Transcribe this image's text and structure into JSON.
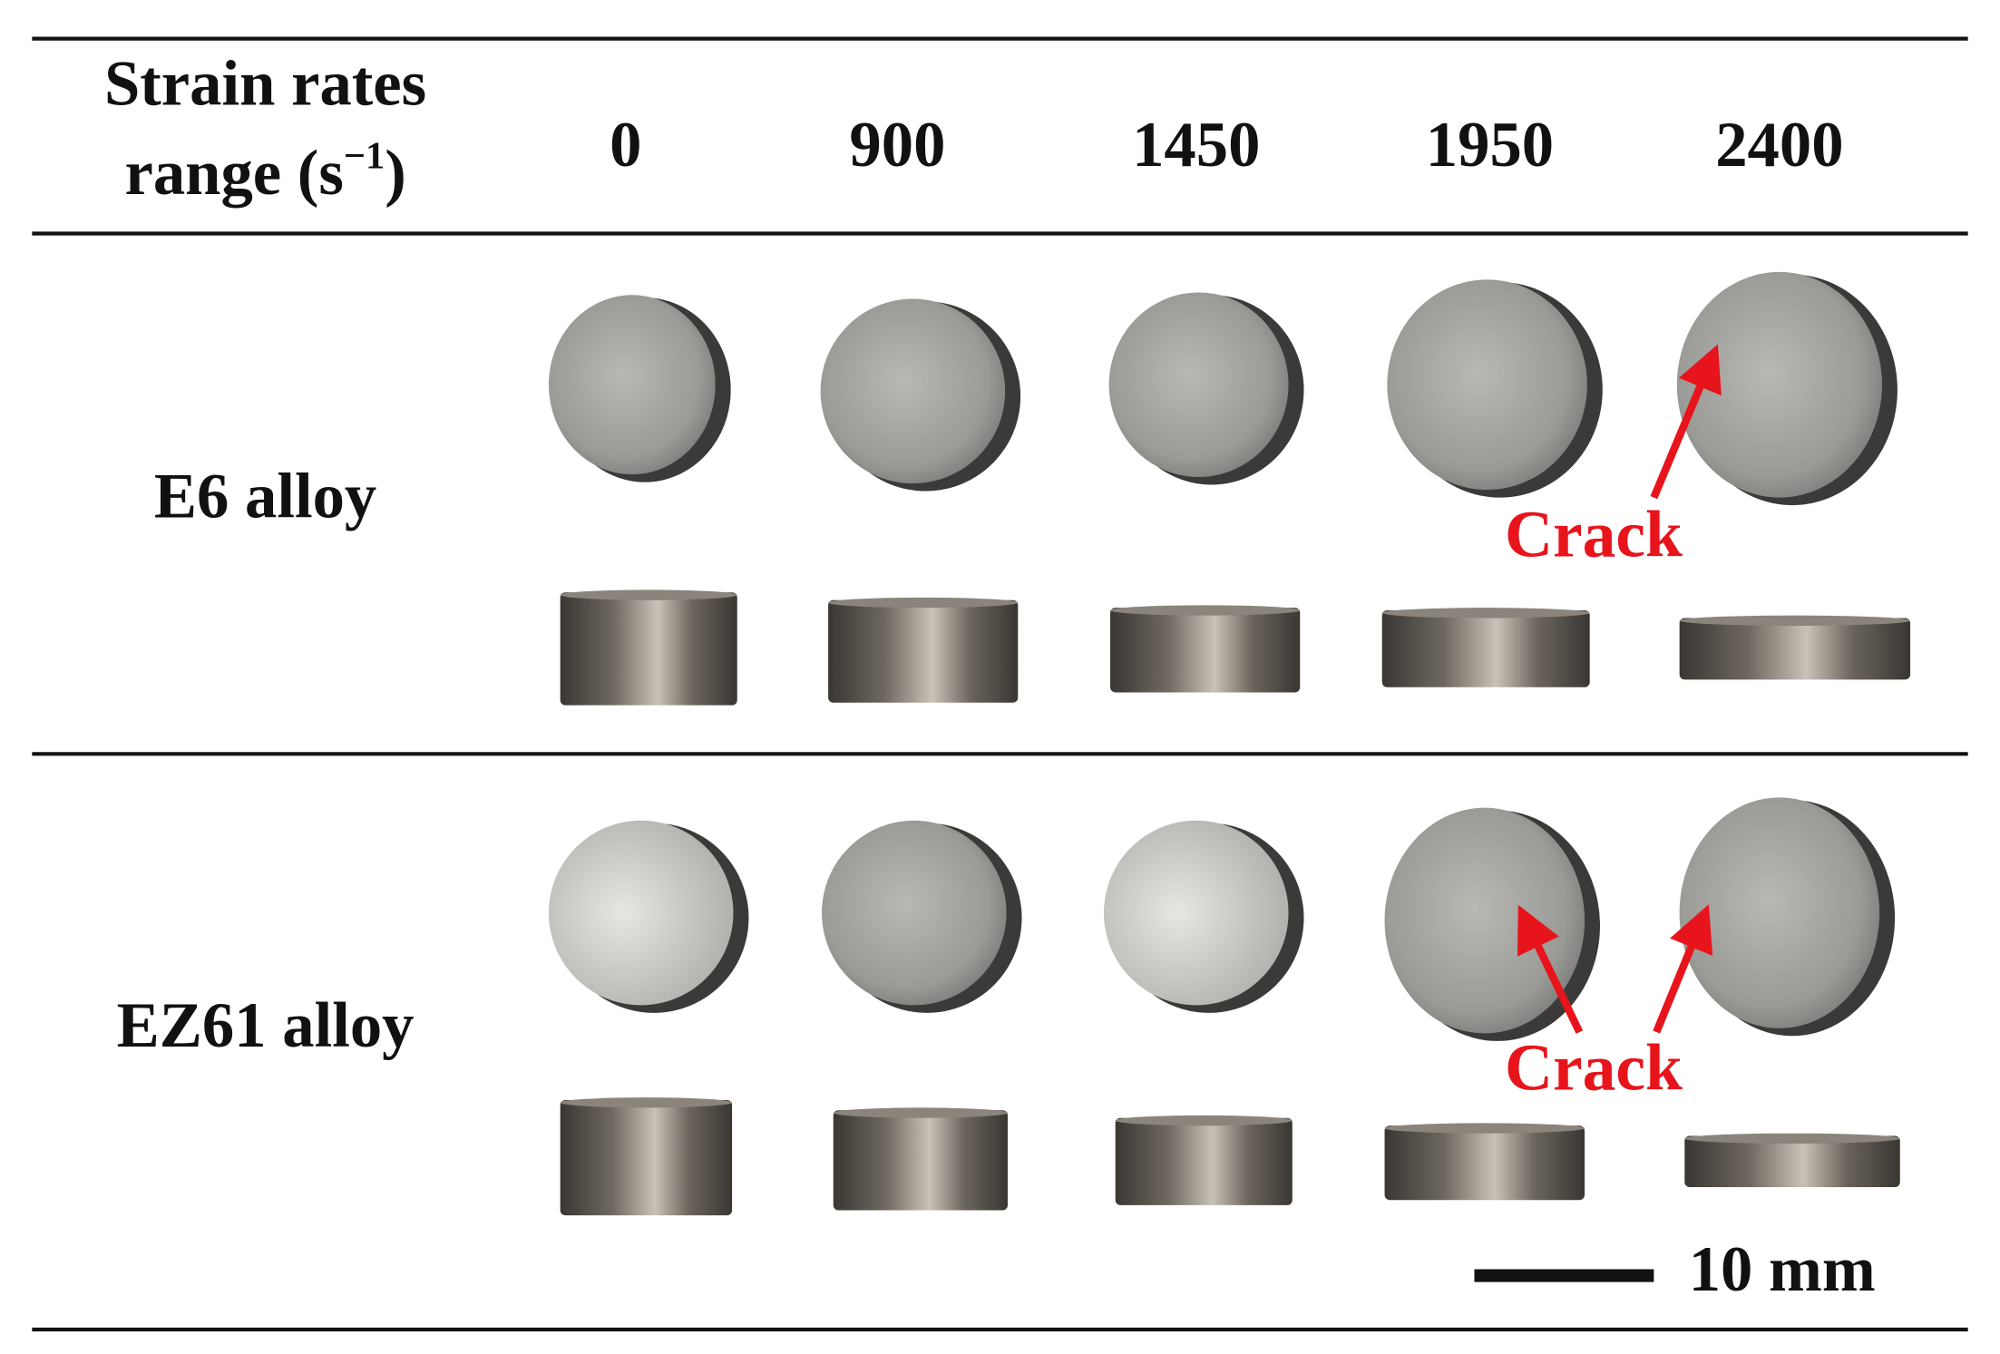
{
  "header": {
    "label": [
      "Strain rates",
      "range (s",
      "−1",
      ")"
    ],
    "columns": [
      0,
      900,
      1450,
      1950,
      2400
    ]
  },
  "rows": [
    {
      "label": "E6 alloy"
    },
    {
      "label": "EZ61 alloy"
    }
  ],
  "annotations": [
    "Crack",
    "Crack"
  ],
  "scale_bar": "10 mm"
}
